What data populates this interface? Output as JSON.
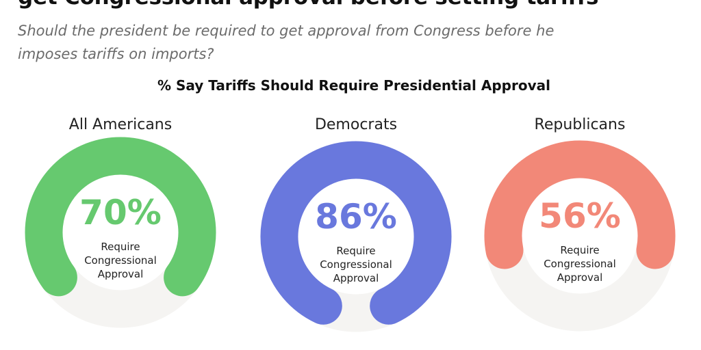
{
  "headline": "get Congressional approval before setting tariffs",
  "subtitle": "Should the president be required to get approval from Congress before he imposes tariffs on imports?",
  "chart_data": {
    "type": "pie",
    "title": "% Say Tariffs Should Require Presidential Approval",
    "center_caption": [
      "Require",
      "Congressional",
      "Approval"
    ],
    "track_color": "#f5f4f2",
    "groups": [
      {
        "label": "All Americans",
        "value": 70,
        "display": "70%",
        "color": "#66c96f"
      },
      {
        "label": "Democrats",
        "value": 86,
        "display": "86%",
        "color": "#6978dd"
      },
      {
        "label": "Republicans",
        "value": 56,
        "display": "56%",
        "color": "#f28878"
      }
    ]
  }
}
